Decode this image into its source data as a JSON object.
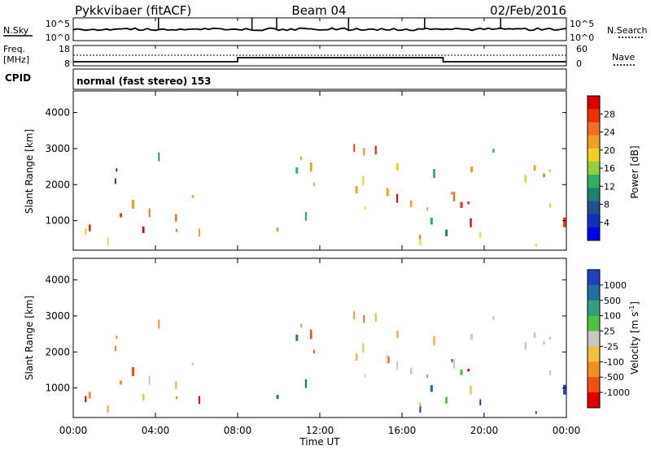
{
  "header": {
    "radar": "Pykkvibaer (fitACF)",
    "beam": "Beam 04",
    "date": "02/Feb/2016",
    "cpid_label": "CPID",
    "cpid_text": "normal (fast stereo) 153"
  },
  "noise_panel": {
    "left_label": "N.Sky",
    "right_label": "N.Search",
    "y_ticks": [
      "10^5",
      "10^0"
    ]
  },
  "freq_panel": {
    "left_label": "Freq.",
    "left_units": "[MHz]",
    "left_ticks": [
      "18",
      "8"
    ],
    "right_label": "Nave",
    "right_ticks": [
      "60",
      "0"
    ]
  },
  "power_colorbar": {
    "title": "Power [dB]",
    "ticks": [
      "28",
      "24",
      "20",
      "16",
      "12",
      "8",
      "4"
    ],
    "colors": [
      "#e00000",
      "#f03000",
      "#f07020",
      "#f0a020",
      "#f0d020",
      "#90d040",
      "#30b060",
      "#208070",
      "#205090",
      "#1030c0",
      "#0000ff"
    ]
  },
  "velocity_colorbar": {
    "title": "Velocity [m s",
    "title_sup": "-1",
    "title_end": "]",
    "ticks": [
      "1000",
      "500",
      "100",
      "25",
      "-25",
      "-100",
      "-500",
      "-1000"
    ],
    "colors": [
      "#2040c0",
      "#2070a0",
      "#30a080",
      "#50c040",
      "#c8c8c0",
      "#f0c040",
      "#f09020",
      "#f05010",
      "#e00000"
    ]
  },
  "chart_data": {
    "type": "heatmap",
    "xlabel": "Time UT",
    "x_ticks": [
      "00:00",
      "04:00",
      "08:00",
      "12:00",
      "16:00",
      "20:00",
      "00:00"
    ],
    "xlim_hours": [
      0,
      24
    ],
    "ylabel": "Slant Range [km]",
    "y_ticks": [
      1000,
      2000,
      3000,
      4000
    ],
    "ylim_km": [
      180,
      4600
    ],
    "freq_mhz_steps": [
      {
        "from_h": 0,
        "to_h": 8,
        "freq": 10
      },
      {
        "from_h": 8,
        "to_h": 18,
        "freq": 12
      },
      {
        "from_h": 18,
        "to_h": 24,
        "freq": 10
      }
    ],
    "scatter_regions": [
      {
        "t0": 0.0,
        "t1": 5.8,
        "r0": 350,
        "r1": 1700,
        "power": "high",
        "velocity": "negative"
      },
      {
        "t0": 2.0,
        "t1": 6.0,
        "r0": 1000,
        "r1": 1700,
        "power": "medium",
        "velocity": "near-zero"
      },
      {
        "t0": 4.5,
        "t1": 7.0,
        "r0": 450,
        "r1": 700,
        "power": "medium",
        "velocity": "negative"
      },
      {
        "t0": 1.8,
        "t1": 4.2,
        "r0": 2000,
        "r1": 3200,
        "power": "low",
        "velocity": "negative"
      },
      {
        "t0": 9.5,
        "t1": 11.5,
        "r0": 700,
        "r1": 2500,
        "power": "medium",
        "velocity": "positive"
      },
      {
        "t0": 11.0,
        "t1": 15.8,
        "r0": 1300,
        "r1": 3400,
        "power": "high",
        "velocity": "negative"
      },
      {
        "t0": 11.5,
        "t1": 18.0,
        "r0": 1300,
        "r1": 2100,
        "power": "high",
        "velocity": "near-zero"
      },
      {
        "t0": 15.5,
        "t1": 18.5,
        "r0": 500,
        "r1": 1800,
        "power": "medium",
        "velocity": "positive"
      },
      {
        "t0": 16.5,
        "t1": 24.0,
        "r0": 300,
        "r1": 1500,
        "power": "high",
        "velocity": "mixed"
      },
      {
        "t0": 17.5,
        "t1": 24.0,
        "r0": 1400,
        "r1": 3000,
        "power": "medium",
        "velocity": "near-zero"
      }
    ]
  }
}
